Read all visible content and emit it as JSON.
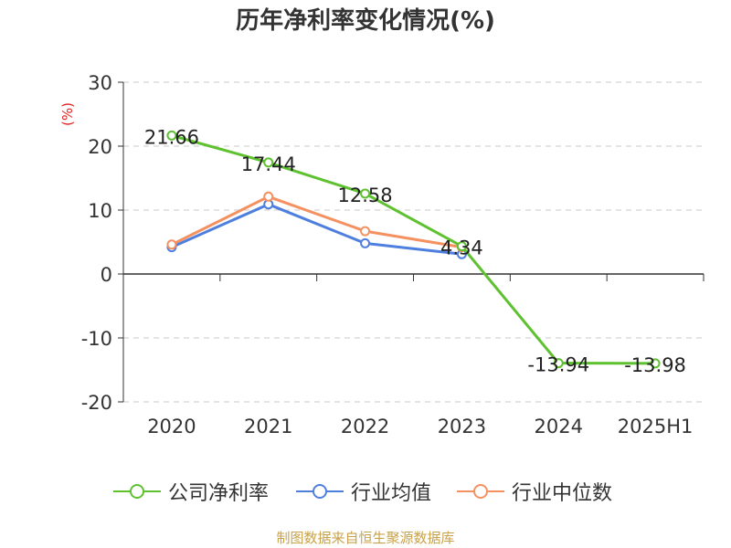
{
  "chart_data": {
    "type": "line",
    "title": "历年净利率变化情况(%)",
    "ylabel": "(%)",
    "categories": [
      "2020",
      "2021",
      "2022",
      "2023",
      "2024",
      "2025H1"
    ],
    "ylim": [
      -20,
      30
    ],
    "yticks": [
      30,
      20,
      10,
      0,
      -10,
      -20
    ],
    "grid": true,
    "legend_position": "bottom",
    "series": [
      {
        "name": "公司净利率",
        "color": "#5ec12f",
        "values": [
          21.66,
          17.44,
          12.58,
          4.34,
          -13.94,
          -13.98
        ],
        "labels": [
          "21.66",
          "17.44",
          "12.58",
          "4.34",
          "-13.94",
          "-13.98"
        ]
      },
      {
        "name": "行业均值",
        "color": "#4f7fde",
        "values": [
          4.2,
          10.9,
          4.8,
          3.1,
          null,
          null
        ]
      },
      {
        "name": "行业中位数",
        "color": "#f59061",
        "values": [
          4.6,
          12.1,
          6.7,
          4.2,
          null,
          null
        ]
      }
    ]
  },
  "watermark": "制图数据来自恒生聚源数据库"
}
